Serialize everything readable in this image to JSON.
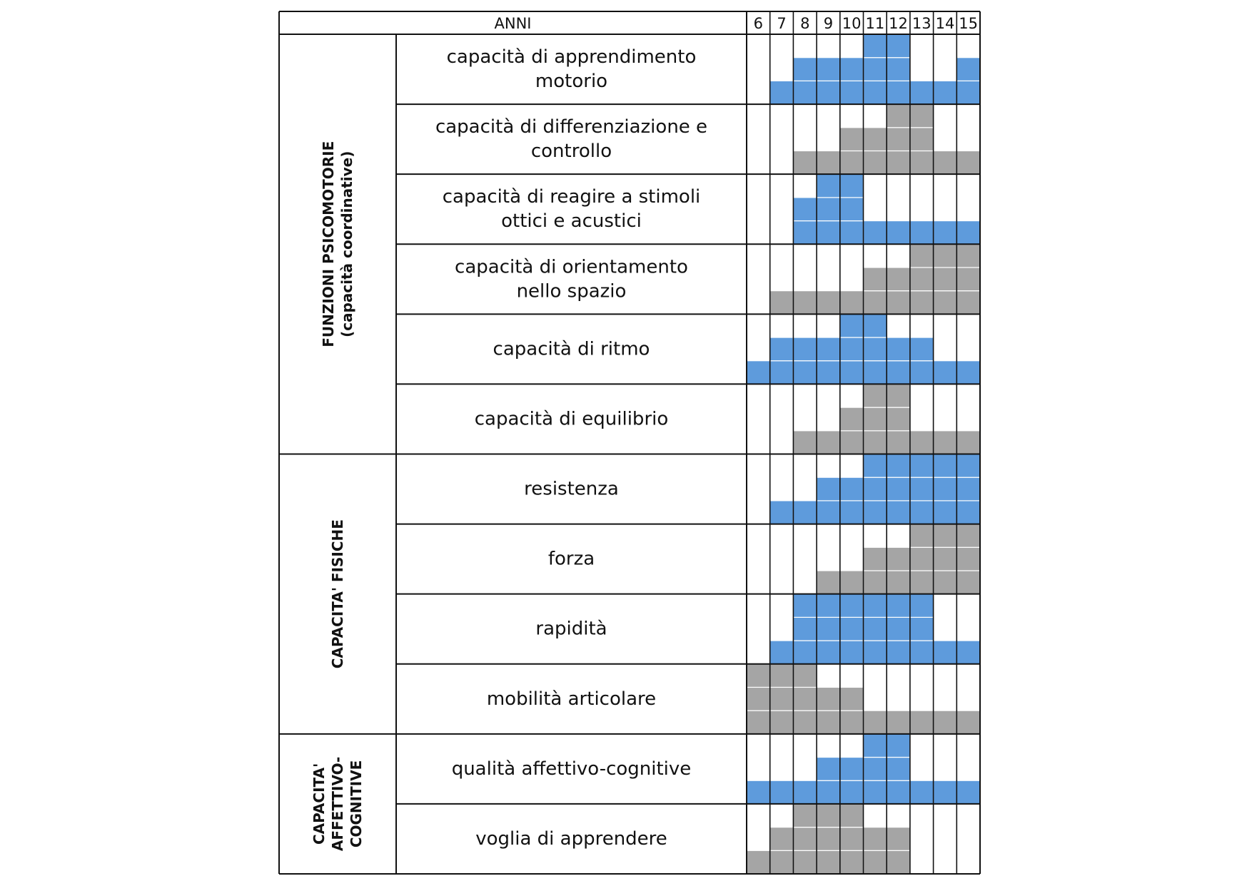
{
  "chart_data": {
    "type": "heatmap",
    "header_label": "ANNI",
    "years": [
      "6",
      "7",
      "8",
      "9",
      "10",
      "11",
      "12",
      "13",
      "14",
      "15"
    ],
    "colors": {
      "blue": "#5e9bdc",
      "gray": "#a5a5a5",
      "grid": "#111111",
      "block_line": "#ffffff"
    },
    "max_level": 3,
    "groups": [
      {
        "label_lines": [
          "FUNZIONI PSICOMOTORIE",
          "(capacità coordinative)"
        ],
        "rows": [
          0,
          1,
          2,
          3,
          4,
          5
        ]
      },
      {
        "label_lines": [
          "CAPACITA' FISICHE"
        ],
        "rows": [
          6,
          7,
          8,
          9
        ]
      },
      {
        "label_lines": [
          "CAPACITA'",
          "AFFETTIVO-",
          "COGNITIVE"
        ],
        "rows": [
          10,
          11
        ]
      }
    ],
    "rows": [
      {
        "label_lines": [
          "capacità di apprendimento",
          "motorio"
        ],
        "color": "blue",
        "levels": [
          0,
          1,
          2,
          2,
          2,
          3,
          3,
          1,
          1,
          2
        ]
      },
      {
        "label_lines": [
          "capacità di differenziazione e",
          "controllo"
        ],
        "color": "gray",
        "levels": [
          0,
          0,
          1,
          1,
          2,
          2,
          3,
          3,
          1,
          1
        ]
      },
      {
        "label_lines": [
          "capacità di reagire a stimoli",
          "ottici e acustici"
        ],
        "color": "blue",
        "levels": [
          0,
          0,
          2,
          3,
          3,
          1,
          1,
          1,
          1,
          1
        ]
      },
      {
        "label_lines": [
          "capacità di orientamento",
          "nello spazio"
        ],
        "color": "gray",
        "levels": [
          0,
          1,
          1,
          1,
          1,
          2,
          2,
          3,
          3,
          3
        ]
      },
      {
        "label_lines": [
          "capacità di ritmo"
        ],
        "color": "blue",
        "levels": [
          1,
          2,
          2,
          2,
          3,
          3,
          2,
          2,
          1,
          1
        ]
      },
      {
        "label_lines": [
          "capacità di equilibrio"
        ],
        "color": "gray",
        "levels": [
          0,
          0,
          1,
          1,
          2,
          3,
          3,
          1,
          1,
          1
        ]
      },
      {
        "label_lines": [
          "resistenza"
        ],
        "color": "blue",
        "levels": [
          0,
          1,
          1,
          2,
          2,
          3,
          3,
          3,
          3,
          3
        ]
      },
      {
        "label_lines": [
          "forza"
        ],
        "color": "gray",
        "levels": [
          0,
          0,
          0,
          1,
          1,
          2,
          2,
          3,
          3,
          3
        ]
      },
      {
        "label_lines": [
          "rapidità"
        ],
        "color": "blue",
        "levels": [
          0,
          1,
          3,
          3,
          3,
          3,
          3,
          3,
          1,
          1
        ]
      },
      {
        "label_lines": [
          "mobilità articolare"
        ],
        "color": "gray",
        "levels": [
          3,
          3,
          3,
          2,
          2,
          1,
          1,
          1,
          1,
          1
        ]
      },
      {
        "label_lines": [
          "qualità affettivo-cognitive"
        ],
        "color": "blue",
        "levels": [
          1,
          1,
          1,
          2,
          2,
          3,
          3,
          1,
          1,
          1
        ]
      },
      {
        "label_lines": [
          "voglia di apprendere"
        ],
        "color": "gray",
        "levels": [
          1,
          2,
          3,
          3,
          3,
          2,
          2,
          0,
          0,
          0
        ]
      }
    ]
  }
}
